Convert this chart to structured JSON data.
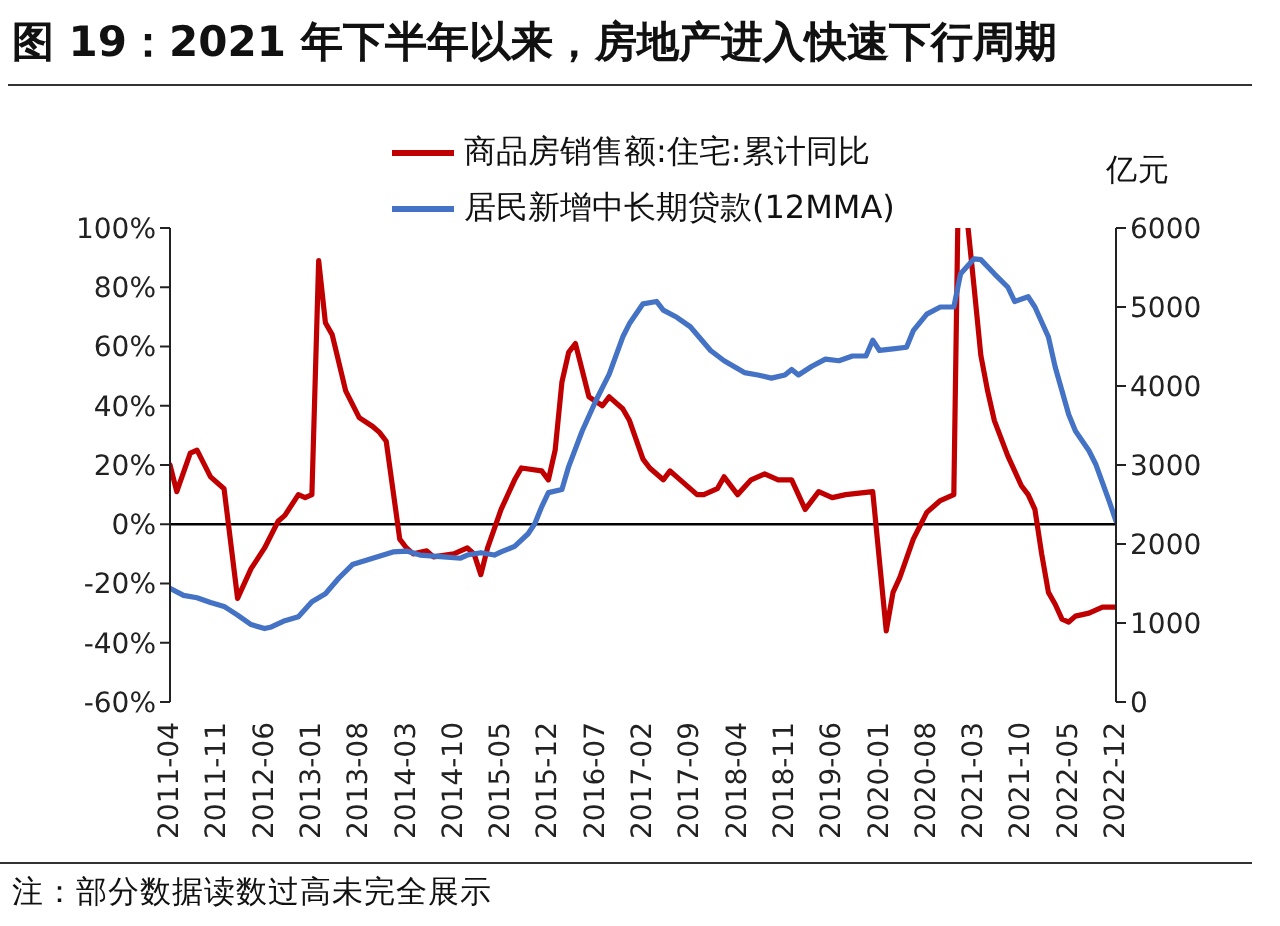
{
  "chart_data": {
    "type": "line",
    "title": "图 19：2021 年下半年以来，房地产进入快速下行周期",
    "y2label": "亿元",
    "annotations": [
      "注：部分数据读数过高未完全展示"
    ],
    "xlim": [
      "2011-04",
      "2022-12"
    ],
    "xticks": [
      "2011-04",
      "2011-11",
      "2012-06",
      "2013-01",
      "2013-08",
      "2014-03",
      "2014-10",
      "2015-05",
      "2015-12",
      "2016-07",
      "2017-02",
      "2017-09",
      "2018-04",
      "2018-11",
      "2019-06",
      "2020-01",
      "2020-08",
      "2021-03",
      "2021-10",
      "2022-05",
      "2022-12"
    ],
    "ylim": [
      -60,
      100
    ],
    "yticks": [
      {
        "value": -60,
        "label": "-60%"
      },
      {
        "value": -40,
        "label": "-40%"
      },
      {
        "value": -20,
        "label": "-20%"
      },
      {
        "value": 0,
        "label": "0%"
      },
      {
        "value": 20,
        "label": "20%"
      },
      {
        "value": 40,
        "label": "40%"
      },
      {
        "value": 60,
        "label": "60%"
      },
      {
        "value": 80,
        "label": "80%"
      },
      {
        "value": 100,
        "label": "100%"
      }
    ],
    "y2lim": [
      0,
      6000
    ],
    "y2ticks": [
      0,
      1000,
      2000,
      3000,
      4000,
      5000,
      6000
    ],
    "legend": "top",
    "marker": "none",
    "line_style": "solid",
    "ref_lines": [
      {
        "axis": "y",
        "value": 0,
        "color": "#000000"
      }
    ],
    "series": [
      {
        "name": "商品房销售额:住宅:累计同比",
        "color": "#c00000",
        "x": [
          "2011-04",
          "2011-05",
          "2011-07",
          "2011-08",
          "2011-10",
          "2011-12",
          "2012-02",
          "2012-04",
          "2012-06",
          "2012-08",
          "2012-09",
          "2012-11",
          "2012-12",
          "2013-01",
          "2013-02",
          "2013-03",
          "2013-04",
          "2013-06",
          "2013-08",
          "2013-10",
          "2013-11",
          "2013-12",
          "2014-02",
          "2014-03",
          "2014-04",
          "2014-06",
          "2014-07",
          "2014-10",
          "2014-12",
          "2015-01",
          "2015-02",
          "2015-03",
          "2015-05",
          "2015-07",
          "2015-08",
          "2015-11",
          "2015-12",
          "2016-01",
          "2016-02",
          "2016-03",
          "2016-04",
          "2016-05",
          "2016-06",
          "2016-08",
          "2016-09",
          "2016-11",
          "2016-12",
          "2017-02",
          "2017-03",
          "2017-05",
          "2017-06",
          "2017-07",
          "2017-10",
          "2017-11",
          "2018-01",
          "2018-02",
          "2018-04",
          "2018-06",
          "2018-08",
          "2018-10",
          "2018-12",
          "2019-02",
          "2019-04",
          "2019-06",
          "2019-08",
          "2019-12",
          "2020-02",
          "2020-03",
          "2020-04",
          "2020-06",
          "2020-08",
          "2020-10",
          "2020-12",
          "2020-12-19",
          "2021-01",
          "2021-02-04",
          "2021-03",
          "2021-04",
          "2021-05",
          "2021-06",
          "2021-07",
          "2021-08",
          "2021-09",
          "2021-10",
          "2021-11",
          "2021-12",
          "2022-01",
          "2022-02",
          "2022-03",
          "2022-04",
          "2022-05",
          "2022-06",
          "2022-08",
          "2022-10",
          "2022-12"
        ],
        "values": [
          20,
          11,
          24,
          25,
          16,
          12,
          -25,
          -15,
          -8,
          1,
          3,
          10,
          9,
          10,
          89,
          68,
          64,
          45,
          36,
          33,
          31,
          28,
          -5,
          -8,
          -10,
          -9,
          -11,
          -10,
          -8,
          -10,
          -17,
          -8,
          5,
          15,
          19,
          18,
          15,
          25,
          48,
          58,
          61,
          52,
          43,
          40,
          43,
          39,
          35,
          22,
          19,
          15,
          18,
          16,
          10,
          10,
          12,
          16,
          10,
          15,
          17,
          15,
          15,
          5,
          11,
          9,
          10,
          11,
          -36,
          -23,
          -18,
          -5,
          4,
          8,
          10,
          100,
          null,
          100,
          80,
          57,
          45,
          35,
          29,
          23,
          18,
          13,
          10,
          5,
          -10,
          -23,
          -27,
          -32,
          -33,
          -31,
          -30,
          -28,
          -28
        ]
      },
      {
        "name": "居民新增中长期贷款(12MMA)",
        "color": "#4472c4",
        "axis": "y2",
        "x": [
          "2011-04",
          "2011-06",
          "2011-08",
          "2011-10",
          "2011-12",
          "2012-02",
          "2012-04",
          "2012-06",
          "2012-07",
          "2012-09",
          "2012-11",
          "2013-01",
          "2013-03",
          "2013-05",
          "2013-07",
          "2013-10",
          "2014-01",
          "2014-03",
          "2014-05",
          "2014-08",
          "2014-11",
          "2014-12",
          "2015-02",
          "2015-04",
          "2015-05",
          "2015-07",
          "2015-09",
          "2015-10",
          "2015-11",
          "2015-12",
          "2016-02",
          "2016-03",
          "2016-05",
          "2016-07",
          "2016-09",
          "2016-11",
          "2016-12",
          "2017-02",
          "2017-04",
          "2017-05",
          "2017-07",
          "2017-09",
          "2017-12",
          "2018-02",
          "2018-05",
          "2018-07",
          "2018-09",
          "2018-11",
          "2018-12",
          "2019-01",
          "2019-03",
          "2019-05",
          "2019-07",
          "2019-09",
          "2019-11",
          "2019-12",
          "2020-01",
          "2020-03",
          "2020-05",
          "2020-06",
          "2020-08",
          "2020-10",
          "2020-12",
          "2021-01",
          "2021-03",
          "2021-04",
          "2021-06",
          "2021-08",
          "2021-09",
          "2021-11",
          "2021-12",
          "2022-02",
          "2022-03",
          "2022-05",
          "2022-06",
          "2022-08",
          "2022-09",
          "2022-11",
          "2022-12"
        ],
        "values": [
          1440,
          1350,
          1320,
          1260,
          1210,
          1100,
          980,
          930,
          950,
          1030,
          1080,
          1270,
          1370,
          1570,
          1740,
          1820,
          1900,
          1910,
          1860,
          1840,
          1820,
          1860,
          1890,
          1860,
          1900,
          1970,
          2130,
          2260,
          2470,
          2650,
          2690,
          2980,
          3430,
          3810,
          4150,
          4620,
          4790,
          5040,
          5070,
          4960,
          4870,
          4750,
          4450,
          4320,
          4170,
          4140,
          4100,
          4140,
          4210,
          4140,
          4250,
          4340,
          4320,
          4380,
          4380,
          4580,
          4450,
          4470,
          4490,
          4700,
          4910,
          5000,
          5000,
          5420,
          5610,
          5600,
          5420,
          5250,
          5070,
          5130,
          5000,
          4620,
          4240,
          3640,
          3430,
          3180,
          3010,
          2540,
          2290
        ]
      }
    ]
  }
}
